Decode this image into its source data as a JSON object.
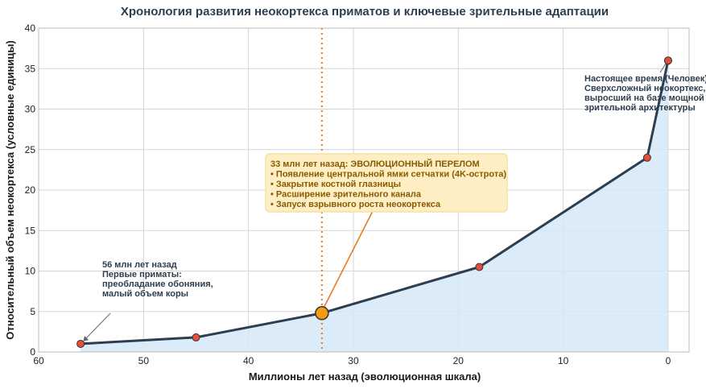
{
  "chart_data": {
    "type": "line",
    "title": "Хронология развития неокортекса приматов и ключевые зрительные адаптации",
    "xlabel": "Миллионы лет назад (эволюционная шкала)",
    "ylabel": "Относительный объем неокортекса (условные единицы)",
    "xlim": [
      60,
      -2
    ],
    "ylim": [
      0,
      40
    ],
    "x_ticks": [
      60,
      50,
      40,
      30,
      20,
      10,
      0
    ],
    "y_ticks": [
      0,
      5,
      10,
      15,
      20,
      25,
      30,
      35,
      40
    ],
    "grid": true,
    "x": [
      56,
      45,
      33,
      18,
      2,
      0
    ],
    "y": [
      1,
      1.8,
      4.8,
      10.5,
      24,
      36
    ],
    "highlight": {
      "x": 33,
      "y": 4.8
    },
    "vline_x": 33,
    "colors": {
      "line": "#2c3e50",
      "fill": "#d6e8f7",
      "marker": "#e74c3c",
      "highlight": "#f39c12",
      "vline": "#e67e22",
      "box_fill": "#fdefc3",
      "box_edge": "#f7dfa0"
    },
    "annotations": [
      {
        "lines": [
          "56 млн лет назад",
          "Первые приматы:",
          "преобладание обоняния,",
          "малый объем коры"
        ]
      },
      {
        "lines": [
          "33 млн лет назад: ЭВОЛЮЦИОННЫЙ ПЕРЕЛОМ",
          "• Появление центральной ямки сетчатки (4K-острота)",
          "• Закрытие костной глазницы",
          "• Расширение зрительного канала",
          "• Запуск взрывного роста неокортекса"
        ]
      },
      {
        "lines": [
          "Настоящее время (Человек)",
          "Сверхсложный неокортекс,",
          "выросший на базе мощной",
          "зрительной архитектуры"
        ]
      }
    ]
  }
}
